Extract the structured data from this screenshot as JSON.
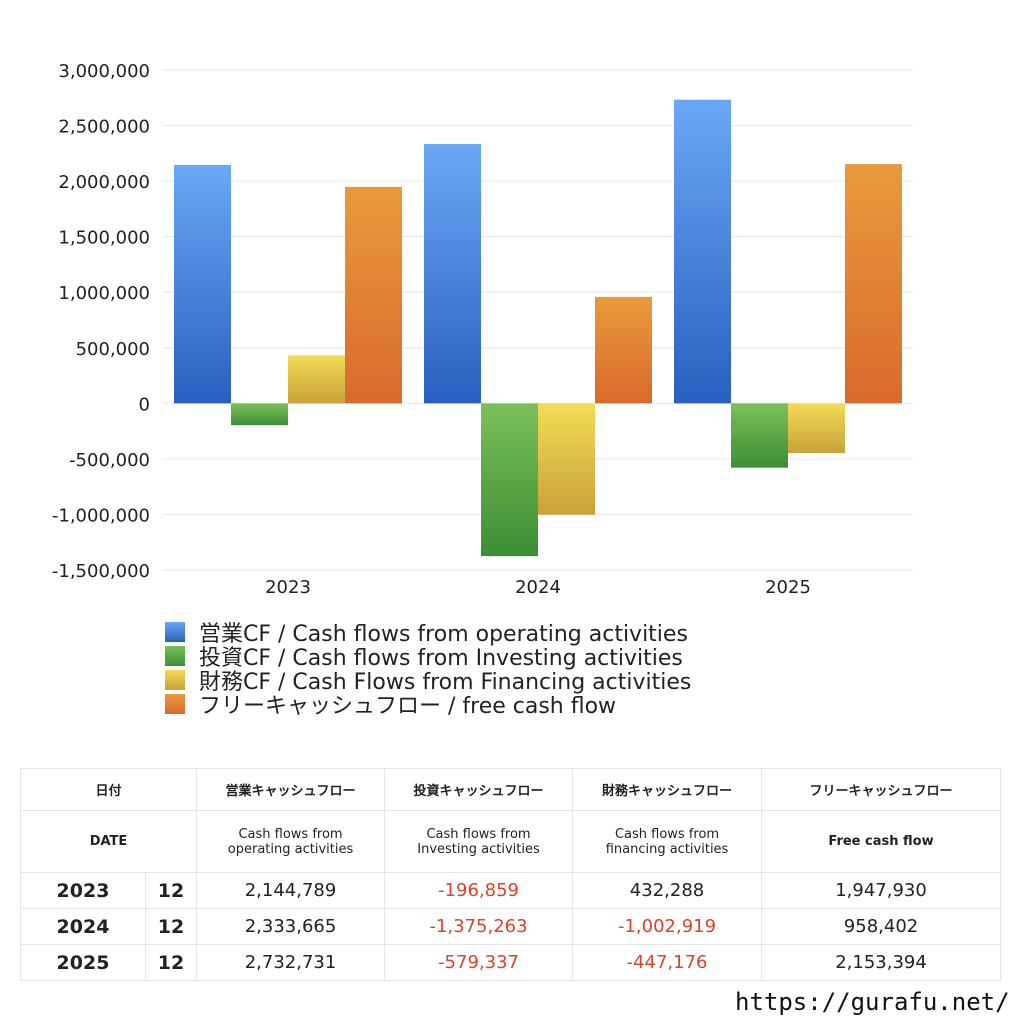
{
  "chart_data": {
    "type": "bar",
    "categories": [
      "2023",
      "2024",
      "2025"
    ],
    "ylim": [
      -1500000,
      3000000
    ],
    "ytick_labels": [
      "3,000,000",
      "2,500,000",
      "2,000,000",
      "1,500,000",
      "1,000,000",
      "500,000",
      "0",
      "-500,000",
      "-1,000,000",
      "-1,500,000"
    ],
    "ytick_values": [
      3000000,
      2500000,
      2000000,
      1500000,
      1000000,
      500000,
      0,
      -500000,
      -1000000,
      -1500000
    ],
    "grid": true,
    "legend_position": "bottom",
    "series": [
      {
        "name": "営業CF / Cash flows from operating activities",
        "values": [
          2144789,
          2333665,
          2732731
        ],
        "color_top": "#6aa8f5",
        "color_bottom": "#2a5fbf"
      },
      {
        "name": "投資CF / Cash flows from Investing activities",
        "values": [
          -196859,
          -1375263,
          -579337
        ],
        "color_top": "#7cc05a",
        "color_bottom": "#3b8e35"
      },
      {
        "name": "財務CF / Cash Flows from Financing activities",
        "values": [
          432288,
          -1002919,
          -447176
        ],
        "color_top": "#f3dc55",
        "color_bottom": "#c9a13a"
      },
      {
        "name": "フリーキャッシュフロー / free cash flow",
        "values": [
          1947930,
          958402,
          2153394
        ],
        "color_top": "#e99a3c",
        "color_bottom": "#d86a2c"
      }
    ]
  },
  "table": {
    "headers_jp": [
      "日付",
      "営業キャッシュフロー",
      "投資キャッシュフロー",
      "財務キャッシュフロー",
      "フリーキャッシュフロー"
    ],
    "headers_en": [
      "DATE",
      "Cash flows from\noperating activities",
      "Cash flows from\nInvesting activities",
      "Cash flows from\nfinancing activities",
      "Free cash flow"
    ],
    "rows": [
      {
        "year": "2023",
        "month": "12",
        "operating": "2,144,789",
        "investing": "-196,859",
        "financing": "432,288",
        "free": "1,947,930"
      },
      {
        "year": "2024",
        "month": "12",
        "operating": "2,333,665",
        "investing": "-1,375,263",
        "financing": "-1,002,919",
        "free": "958,402"
      },
      {
        "year": "2025",
        "month": "12",
        "operating": "2,732,731",
        "investing": "-579,337",
        "financing": "-447,176",
        "free": "2,153,394"
      }
    ]
  },
  "footer": {
    "url": "https://gurafu.net/"
  },
  "colors": {
    "negative": "#d9452b"
  }
}
